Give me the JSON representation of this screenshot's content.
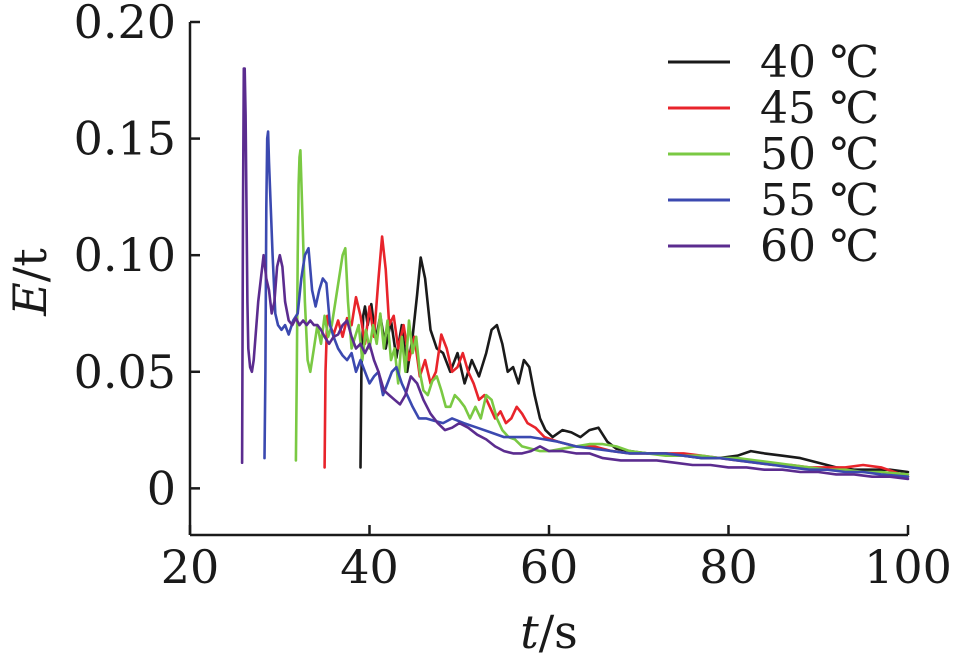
{
  "chart_data": {
    "type": "line",
    "title": "",
    "xlabel": {
      "var": "t",
      "unit": "/s"
    },
    "ylabel": {
      "var": "E",
      "unit": "/t"
    },
    "xlim": [
      20,
      100
    ],
    "ylim": [
      -0.02,
      0.2
    ],
    "xticks": [
      20,
      40,
      60,
      80,
      100
    ],
    "yticks": [
      0,
      0.05,
      0.1,
      0.15,
      0.2
    ],
    "xtick_labels": [
      "20",
      "40",
      "60",
      "80",
      "100"
    ],
    "ytick_labels": [
      "0",
      "0.05",
      "0.10",
      "0.15",
      "0.20"
    ],
    "grid": false,
    "legend_position": "top-right",
    "series": [
      {
        "name": "40 ℃",
        "color": "#1a1a1a",
        "x": [
          39.0,
          39.1,
          39.3,
          39.5,
          39.8,
          40.2,
          40.7,
          41.2,
          41.8,
          42.4,
          43.0,
          43.6,
          44.2,
          44.8,
          45.3,
          45.7,
          46.2,
          46.8,
          47.5,
          48.2,
          49.0,
          49.8,
          50.6,
          51.4,
          52.2,
          53.0,
          53.6,
          54.2,
          54.8,
          55.4,
          56.0,
          56.6,
          57.2,
          57.8,
          58.4,
          59.0,
          59.6,
          60.4,
          61.5,
          62.5,
          63.5,
          64.5,
          65.5,
          66.5,
          67.5,
          69,
          71,
          73,
          75,
          77,
          79,
          81,
          82.5,
          84,
          86,
          88,
          90,
          92,
          94,
          96,
          98,
          100
        ],
        "y": [
          0.009,
          0.05,
          0.074,
          0.078,
          0.07,
          0.079,
          0.064,
          0.074,
          0.06,
          0.072,
          0.056,
          0.07,
          0.05,
          0.065,
          0.083,
          0.099,
          0.09,
          0.068,
          0.06,
          0.058,
          0.05,
          0.058,
          0.045,
          0.055,
          0.048,
          0.058,
          0.068,
          0.07,
          0.062,
          0.05,
          0.052,
          0.045,
          0.055,
          0.052,
          0.04,
          0.03,
          0.025,
          0.022,
          0.025,
          0.024,
          0.022,
          0.025,
          0.026,
          0.02,
          0.017,
          0.016,
          0.015,
          0.015,
          0.014,
          0.013,
          0.013,
          0.014,
          0.016,
          0.015,
          0.014,
          0.013,
          0.011,
          0.009,
          0.008,
          0.008,
          0.008,
          0.007
        ]
      },
      {
        "name": "45 ℃",
        "color": "#e8242b",
        "x": [
          35.0,
          35.1,
          35.3,
          35.6,
          36.0,
          36.5,
          37.0,
          37.5,
          38.0,
          38.5,
          39.0,
          39.5,
          40.0,
          40.5,
          41.0,
          41.4,
          41.8,
          42.2,
          42.7,
          43.2,
          43.8,
          44.4,
          45.0,
          45.6,
          46.2,
          46.8,
          47.4,
          48.0,
          48.6,
          49.2,
          49.8,
          50.4,
          51.0,
          51.6,
          52.2,
          52.8,
          53.4,
          54.0,
          54.6,
          55.2,
          55.8,
          56.4,
          57.0,
          57.6,
          58.5,
          59.5,
          61,
          63,
          65,
          67,
          69,
          71,
          73,
          75,
          77,
          79,
          81,
          83,
          85,
          87,
          89,
          91,
          93,
          95,
          97,
          100
        ],
        "y": [
          0.009,
          0.05,
          0.074,
          0.07,
          0.066,
          0.072,
          0.065,
          0.073,
          0.07,
          0.082,
          0.074,
          0.062,
          0.078,
          0.065,
          0.09,
          0.108,
          0.094,
          0.07,
          0.074,
          0.06,
          0.07,
          0.055,
          0.065,
          0.048,
          0.055,
          0.045,
          0.05,
          0.066,
          0.06,
          0.05,
          0.052,
          0.058,
          0.05,
          0.045,
          0.038,
          0.04,
          0.035,
          0.03,
          0.033,
          0.028,
          0.03,
          0.035,
          0.032,
          0.028,
          0.026,
          0.022,
          0.02,
          0.018,
          0.018,
          0.016,
          0.015,
          0.015,
          0.015,
          0.015,
          0.014,
          0.013,
          0.012,
          0.011,
          0.01,
          0.01,
          0.009,
          0.009,
          0.009,
          0.01,
          0.009,
          0.005
        ]
      },
      {
        "name": "50 ℃",
        "color": "#7ac943",
        "x": [
          31.8,
          31.9,
          32.0,
          32.1,
          32.2,
          32.3,
          32.5,
          32.8,
          33.1,
          33.4,
          33.8,
          34.2,
          34.6,
          35.0,
          35.4,
          35.8,
          36.2,
          36.6,
          37.0,
          37.3,
          37.6,
          38.0,
          38.4,
          38.8,
          39.2,
          39.6,
          40.0,
          40.4,
          40.8,
          41.2,
          41.6,
          42.0,
          42.4,
          42.8,
          43.2,
          43.6,
          44.0,
          44.4,
          44.8,
          45.2,
          45.6,
          46.0,
          46.5,
          47.0,
          47.5,
          48.0,
          48.5,
          49.0,
          49.5,
          50.0,
          50.6,
          51.2,
          51.8,
          52.4,
          53.0,
          53.6,
          54.2,
          54.8,
          55.5,
          56.2,
          57.0,
          58.0,
          59.0,
          60.0,
          61.5,
          63.0,
          64.5,
          66.0,
          67.5,
          69.0,
          71,
          73,
          75,
          77,
          79,
          81,
          83,
          85,
          87,
          89,
          91,
          93,
          95,
          97,
          100
        ],
        "y": [
          0.012,
          0.05,
          0.1,
          0.13,
          0.142,
          0.145,
          0.12,
          0.08,
          0.055,
          0.05,
          0.06,
          0.07,
          0.062,
          0.074,
          0.065,
          0.07,
          0.08,
          0.09,
          0.1,
          0.103,
          0.08,
          0.06,
          0.065,
          0.07,
          0.055,
          0.068,
          0.06,
          0.07,
          0.062,
          0.075,
          0.06,
          0.072,
          0.055,
          0.06,
          0.045,
          0.065,
          0.05,
          0.072,
          0.058,
          0.065,
          0.05,
          0.042,
          0.04,
          0.046,
          0.048,
          0.042,
          0.035,
          0.035,
          0.04,
          0.038,
          0.035,
          0.03,
          0.035,
          0.03,
          0.04,
          0.038,
          0.03,
          0.025,
          0.022,
          0.021,
          0.018,
          0.017,
          0.016,
          0.016,
          0.017,
          0.018,
          0.019,
          0.019,
          0.018,
          0.016,
          0.015,
          0.014,
          0.014,
          0.014,
          0.013,
          0.013,
          0.012,
          0.011,
          0.01,
          0.009,
          0.008,
          0.008,
          0.007,
          0.007,
          0.006
        ]
      },
      {
        "name": "55 ℃",
        "color": "#3b49b0",
        "x": [
          28.3,
          28.4,
          28.5,
          28.6,
          28.7,
          28.8,
          29.0,
          29.2,
          29.5,
          29.8,
          30.2,
          30.6,
          31.0,
          31.5,
          32.0,
          32.4,
          32.8,
          33.2,
          33.6,
          34.0,
          34.4,
          34.8,
          35.2,
          35.6,
          36.0,
          36.5,
          37.0,
          37.5,
          38.0,
          38.5,
          39.0,
          39.5,
          40.0,
          40.5,
          41.0,
          41.5,
          42.0,
          42.5,
          43.0,
          43.6,
          44.2,
          44.8,
          45.5,
          46.3,
          47.2,
          48.2,
          49.2,
          50.5,
          52,
          53.5,
          55,
          56.5,
          58,
          59.5,
          61,
          63,
          65,
          67,
          69,
          71,
          73,
          75,
          77,
          79,
          81,
          83,
          85,
          87,
          89,
          91,
          93,
          95,
          97,
          100
        ],
        "y": [
          0.013,
          0.05,
          0.12,
          0.15,
          0.153,
          0.14,
          0.12,
          0.1,
          0.075,
          0.07,
          0.068,
          0.07,
          0.066,
          0.072,
          0.075,
          0.09,
          0.1,
          0.103,
          0.085,
          0.078,
          0.085,
          0.09,
          0.088,
          0.07,
          0.065,
          0.06,
          0.057,
          0.055,
          0.058,
          0.05,
          0.055,
          0.05,
          0.045,
          0.048,
          0.05,
          0.04,
          0.045,
          0.05,
          0.052,
          0.045,
          0.04,
          0.035,
          0.03,
          0.03,
          0.029,
          0.028,
          0.03,
          0.028,
          0.026,
          0.024,
          0.022,
          0.022,
          0.022,
          0.021,
          0.02,
          0.018,
          0.017,
          0.016,
          0.015,
          0.015,
          0.015,
          0.014,
          0.013,
          0.013,
          0.012,
          0.011,
          0.01,
          0.009,
          0.008,
          0.008,
          0.007,
          0.007,
          0.006,
          0.005
        ]
      },
      {
        "name": "60 ℃",
        "color": "#5b2c8f",
        "x": [
          25.8,
          25.9,
          26.0,
          26.1,
          26.2,
          26.3,
          26.4,
          26.5,
          26.7,
          26.9,
          27.1,
          27.3,
          27.6,
          27.9,
          28.2,
          28.5,
          28.8,
          29.1,
          29.4,
          29.7,
          30.0,
          30.3,
          30.6,
          31.0,
          31.4,
          31.8,
          32.2,
          32.6,
          33.0,
          33.4,
          33.8,
          34.2,
          34.6,
          35.0,
          35.5,
          36.0,
          36.5,
          37.0,
          37.5,
          38.0,
          38.5,
          39.0,
          39.5,
          40.0,
          40.5,
          41.0,
          41.6,
          42.2,
          42.8,
          43.4,
          44.0,
          44.6,
          45.3,
          46.0,
          46.8,
          47.6,
          48.4,
          49.2,
          50.0,
          51,
          52,
          53,
          54,
          55,
          56,
          57,
          58,
          59,
          60,
          61.5,
          63,
          64.5,
          66,
          68,
          70,
          72,
          74,
          76,
          78,
          80,
          82,
          84,
          86,
          88,
          90,
          92,
          94,
          96,
          98,
          100
        ],
        "y": [
          0.011,
          0.12,
          0.18,
          0.18,
          0.16,
          0.12,
          0.08,
          0.06,
          0.052,
          0.05,
          0.055,
          0.065,
          0.08,
          0.09,
          0.1,
          0.09,
          0.085,
          0.075,
          0.08,
          0.095,
          0.1,
          0.095,
          0.08,
          0.072,
          0.07,
          0.073,
          0.07,
          0.072,
          0.07,
          0.072,
          0.07,
          0.07,
          0.068,
          0.065,
          0.062,
          0.065,
          0.066,
          0.07,
          0.072,
          0.065,
          0.06,
          0.062,
          0.058,
          0.062,
          0.055,
          0.05,
          0.042,
          0.04,
          0.038,
          0.036,
          0.04,
          0.048,
          0.045,
          0.038,
          0.032,
          0.028,
          0.025,
          0.026,
          0.028,
          0.026,
          0.023,
          0.021,
          0.018,
          0.016,
          0.015,
          0.015,
          0.016,
          0.018,
          0.016,
          0.016,
          0.015,
          0.015,
          0.013,
          0.012,
          0.012,
          0.012,
          0.011,
          0.01,
          0.01,
          0.009,
          0.009,
          0.008,
          0.008,
          0.007,
          0.007,
          0.006,
          0.006,
          0.005,
          0.005,
          0.004
        ]
      }
    ]
  }
}
